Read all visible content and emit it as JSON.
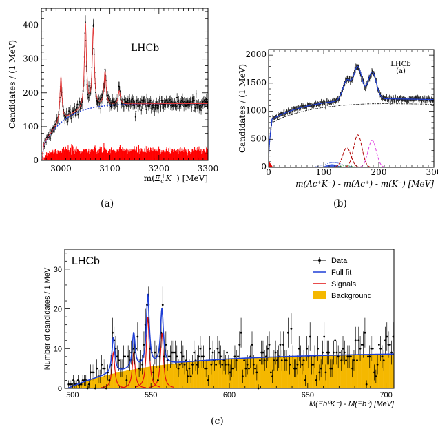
{
  "captions": [
    "(a)",
    "(b)",
    "(c)"
  ],
  "chart_data": [
    {
      "type": "line",
      "panel": "(a)",
      "watermark": "LHCb",
      "xlabel": "m(Ξc⁺K⁻) [MeV]",
      "xlabel_parts": {
        "pre": "m(",
        "main": "Ξ",
        "sub": "c",
        "sup": "+",
        "k": "K",
        "ksup": "−",
        "post": ") [MeV]"
      },
      "ylabel": "Candidates / (1 MeV)",
      "xlim": [
        2960,
        3300
      ],
      "ylim": [
        0,
        450
      ],
      "xticks": [
        3000,
        3100,
        3200,
        3300
      ],
      "yticks": [
        0,
        100,
        200,
        300,
        400
      ],
      "peaks": [
        {
          "mass": 3000,
          "height": 135
        },
        {
          "mass": 3050,
          "height": 250
        },
        {
          "mass": 3066,
          "height": 230
        },
        {
          "mass": 3090,
          "height": 100
        },
        {
          "mass": 3119,
          "height": 40
        }
      ],
      "background_shape": {
        "plateau": 168,
        "threshold": 2962
      },
      "series": [
        {
          "role": "data",
          "color": "#000000"
        },
        {
          "role": "fit",
          "color": "#e23b3b"
        },
        {
          "role": "background",
          "color": "#1f3fd6"
        },
        {
          "role": "wrong-sign",
          "color": "#ff0000",
          "level": 30
        }
      ]
    },
    {
      "type": "line",
      "panel": "(b)",
      "watermark": "LHCb",
      "sublabel": "(a)",
      "xlabel": "m(Λc⁺K⁻) - m(Λc⁺) - m(K⁻) [MeV]",
      "ylabel": "Candidates / (1 MeV)",
      "xlim": [
        0,
        300
      ],
      "ylim": [
        0,
        2100
      ],
      "xticks": [
        0,
        100,
        200,
        300
      ],
      "yticks": [
        0,
        500,
        1000,
        1500,
        2000
      ],
      "peaks": [
        {
          "mass": 142,
          "height": 350
        },
        {
          "mass": 162,
          "height": 580
        },
        {
          "mass": 188,
          "height": 480
        }
      ],
      "background_plateau": 1250,
      "series": [
        {
          "role": "data",
          "color": "#000000"
        },
        {
          "role": "fit",
          "color": "#1f3fd6"
        },
        {
          "role": "background",
          "color": "#000000"
        },
        {
          "role": "component-1",
          "color": "#b00000"
        },
        {
          "role": "component-2",
          "color": "#b00000"
        },
        {
          "role": "component-3",
          "color": "#e040e0"
        }
      ]
    },
    {
      "type": "scatter",
      "panel": "(c)",
      "watermark": "LHCb",
      "xlabel": "M(Ξb⁰K⁻) - M(Ξb⁰) [MeV]",
      "ylabel": "Number of candidates / 1 MeV",
      "xlim": [
        495,
        705
      ],
      "ylim": [
        0,
        35
      ],
      "xticks": [
        500,
        550,
        600,
        650,
        700
      ],
      "yticks": [
        0,
        10,
        20,
        30
      ],
      "legend": [
        "Data",
        "Full fit",
        "Signals",
        "Background"
      ],
      "legend_position": "top-right",
      "peaks": [
        {
          "mass": 526,
          "height": 9
        },
        {
          "mass": 539,
          "height": 9
        },
        {
          "mass": 548,
          "height": 18
        },
        {
          "mass": 557,
          "height": 14
        }
      ],
      "background_shape": {
        "start": 497,
        "plateau": 8.2
      },
      "series": [
        {
          "name": "Data",
          "color": "#000000"
        },
        {
          "name": "Full fit",
          "color": "#1f3fd6"
        },
        {
          "name": "Signals",
          "color": "#e01010"
        },
        {
          "name": "Background",
          "color": "#f5b800"
        }
      ]
    }
  ]
}
